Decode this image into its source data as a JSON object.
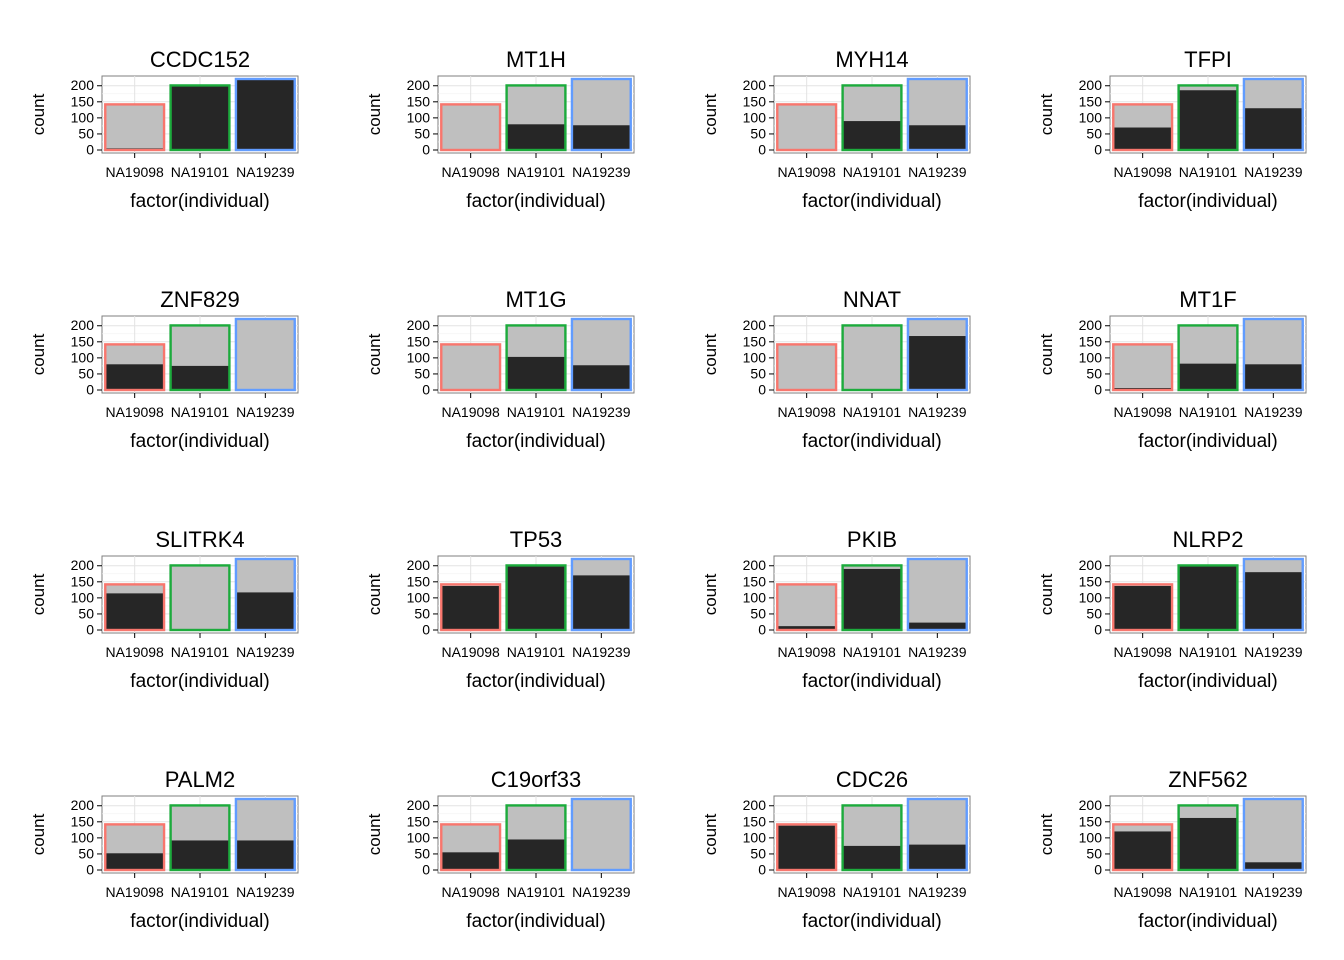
{
  "chart_data": {
    "type": "bar",
    "layout": "4x4 small multiples",
    "position": "stacked",
    "xlabel": "factor(individual)",
    "ylabel": "count",
    "categories": [
      "NA19098",
      "NA19101",
      "NA19239"
    ],
    "ylim": [
      0,
      221
    ],
    "yticks": [
      0,
      50,
      100,
      150,
      200
    ],
    "grid": true,
    "legend": "none",
    "totals": [
      142,
      201,
      221
    ],
    "fill_colors": {
      "lower": "#262626",
      "upper": "#bfbfbf"
    },
    "outline_colors": [
      "#f8766d",
      "#1cab3c",
      "#619cff"
    ],
    "panels": [
      {
        "title": "CCDC152",
        "lower": [
          5,
          201,
          221
        ]
      },
      {
        "title": "MT1H",
        "lower": [
          0,
          80,
          77
        ]
      },
      {
        "title": "MYH14",
        "lower": [
          0,
          90,
          77
        ]
      },
      {
        "title": "TFPI",
        "lower": [
          70,
          186,
          130
        ]
      },
      {
        "title": "ZNF829",
        "lower": [
          80,
          75,
          0
        ]
      },
      {
        "title": "MT1G",
        "lower": [
          0,
          103,
          77
        ]
      },
      {
        "title": "NNAT",
        "lower": [
          0,
          0,
          168
        ]
      },
      {
        "title": "MT1F",
        "lower": [
          6,
          82,
          80
        ]
      },
      {
        "title": "SLITRK4",
        "lower": [
          114,
          0,
          117
        ]
      },
      {
        "title": "TP53",
        "lower": [
          137,
          198,
          170
        ]
      },
      {
        "title": "PKIB",
        "lower": [
          12,
          190,
          23
        ]
      },
      {
        "title": "NLRP2",
        "lower": [
          137,
          201,
          180
        ]
      },
      {
        "title": "PALM2",
        "lower": [
          52,
          92,
          92
        ]
      },
      {
        "title": "C19orf33",
        "lower": [
          55,
          95,
          0
        ]
      },
      {
        "title": "CDC26",
        "lower": [
          138,
          75,
          79
        ]
      },
      {
        "title": "ZNF562",
        "lower": [
          120,
          162,
          24
        ]
      }
    ]
  }
}
